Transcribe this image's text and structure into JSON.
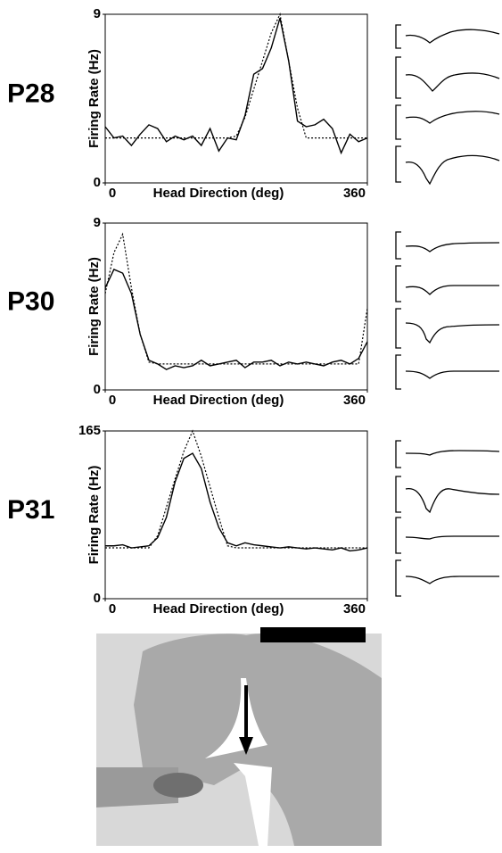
{
  "chart_data": [
    {
      "type": "line",
      "label": "P28",
      "ylabel": "Firing Rate (Hz)",
      "xlabel": "Head Direction (deg)",
      "xlim": [
        0,
        360
      ],
      "xticks": [
        0,
        360
      ],
      "ylim": [
        0,
        9
      ],
      "yticks": [
        0,
        9
      ],
      "x": [
        0,
        12,
        24,
        36,
        48,
        60,
        72,
        84,
        96,
        108,
        120,
        132,
        144,
        156,
        168,
        180,
        192,
        204,
        216,
        228,
        240,
        252,
        264,
        276,
        288,
        300,
        312,
        324,
        336,
        348,
        360
      ],
      "series": [
        {
          "color": "#000000",
          "style": "solid",
          "values": [
            3.0,
            2.4,
            2.5,
            2.0,
            2.6,
            3.1,
            2.9,
            2.2,
            2.5,
            2.3,
            2.5,
            2.0,
            2.9,
            1.7,
            2.4,
            2.3,
            3.6,
            5.8,
            6.1,
            7.2,
            8.8,
            6.5,
            3.3,
            3.0,
            3.1,
            3.4,
            2.9,
            1.6,
            2.6,
            2.2,
            2.4
          ]
        },
        {
          "color": "#000000",
          "style": "dotted",
          "values": [
            2.4,
            2.4,
            2.4,
            2.4,
            2.4,
            2.4,
            2.4,
            2.4,
            2.4,
            2.4,
            2.4,
            2.4,
            2.4,
            2.4,
            2.4,
            2.5,
            3.5,
            5.0,
            6.5,
            8.0,
            9.0,
            6.5,
            4.0,
            2.4,
            2.4,
            2.4,
            2.4,
            2.4,
            2.4,
            2.4,
            2.4
          ]
        }
      ]
    },
    {
      "type": "line",
      "label": "P30",
      "ylabel": "Firing Rate (Hz)",
      "xlabel": "Head Direction (deg)",
      "xlim": [
        0,
        360
      ],
      "xticks": [
        0,
        360
      ],
      "ylim": [
        0,
        9
      ],
      "yticks": [
        0,
        9
      ],
      "x": [
        0,
        12,
        24,
        36,
        48,
        60,
        72,
        84,
        96,
        108,
        120,
        132,
        144,
        156,
        168,
        180,
        192,
        204,
        216,
        228,
        240,
        252,
        264,
        276,
        288,
        300,
        312,
        324,
        336,
        348,
        360
      ],
      "series": [
        {
          "color": "#000000",
          "style": "solid",
          "values": [
            5.5,
            6.5,
            6.3,
            5.2,
            3.0,
            1.6,
            1.4,
            1.1,
            1.3,
            1.2,
            1.3,
            1.6,
            1.3,
            1.4,
            1.5,
            1.6,
            1.2,
            1.5,
            1.5,
            1.6,
            1.3,
            1.5,
            1.4,
            1.5,
            1.4,
            1.3,
            1.5,
            1.6,
            1.4,
            1.7,
            2.6
          ]
        },
        {
          "color": "#000000",
          "style": "dotted",
          "values": [
            5.2,
            7.4,
            8.4,
            5.5,
            3.0,
            1.5,
            1.4,
            1.4,
            1.4,
            1.4,
            1.4,
            1.4,
            1.4,
            1.4,
            1.4,
            1.4,
            1.4,
            1.4,
            1.4,
            1.4,
            1.4,
            1.4,
            1.4,
            1.4,
            1.4,
            1.4,
            1.4,
            1.4,
            1.4,
            1.4,
            4.4
          ]
        }
      ]
    },
    {
      "type": "line",
      "label": "P31",
      "ylabel": "Firing Rate (Hz)",
      "xlabel": "Head Direction (deg)",
      "xlim": [
        0,
        360
      ],
      "xticks": [
        0,
        360
      ],
      "ylim": [
        0,
        165
      ],
      "yticks": [
        0,
        165
      ],
      "x": [
        0,
        12,
        24,
        36,
        48,
        60,
        72,
        84,
        96,
        108,
        120,
        132,
        144,
        156,
        168,
        180,
        192,
        204,
        216,
        228,
        240,
        252,
        264,
        276,
        288,
        300,
        312,
        324,
        336,
        348,
        360
      ],
      "series": [
        {
          "color": "#000000",
          "style": "solid",
          "values": [
            52,
            52,
            53,
            50,
            51,
            52,
            60,
            80,
            115,
            138,
            143,
            128,
            95,
            70,
            55,
            52,
            55,
            53,
            52,
            51,
            50,
            51,
            50,
            49,
            50,
            49,
            48,
            50,
            47,
            48,
            50
          ]
        },
        {
          "color": "#000000",
          "style": "dotted",
          "values": [
            50,
            50,
            50,
            50,
            50,
            50,
            62,
            90,
            118,
            145,
            165,
            140,
            110,
            80,
            52,
            50,
            50,
            50,
            50,
            50,
            50,
            50,
            50,
            50,
            50,
            50,
            50,
            50,
            50,
            50,
            50
          ]
        }
      ]
    }
  ]
}
